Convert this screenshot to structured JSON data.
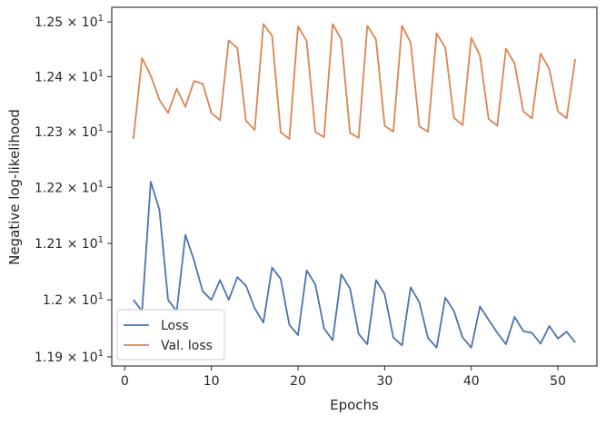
{
  "chart_data": {
    "type": "line",
    "xlabel": "Epochs",
    "ylabel": "Negative log-likelihood",
    "xlim": [
      -1.5,
      54.5
    ],
    "ylim": [
      11.884,
      12.527
    ],
    "x_ticks": [
      0,
      10,
      20,
      30,
      40,
      50
    ],
    "x_tick_labels": [
      "0",
      "10",
      "20",
      "30",
      "40",
      "50"
    ],
    "y_ticks": [
      11.9,
      12.0,
      12.1,
      12.2,
      12.3,
      12.4,
      12.5
    ],
    "y_tick_labels": [
      "1.19",
      "1.2",
      "1.21",
      "1.22",
      "1.23",
      "1.24",
      "1.25"
    ],
    "y_tick_base": "10",
    "y_tick_exponent": "1",
    "y_scale": "log",
    "grid": false,
    "legend_position": "lower-left",
    "series": [
      {
        "name": "Loss",
        "color": "#4c72b0",
        "x": [
          1,
          2,
          3,
          4,
          5,
          6,
          7,
          8,
          9,
          10,
          11,
          12,
          13,
          14,
          15,
          16,
          17,
          18,
          19,
          20,
          21,
          22,
          23,
          24,
          25,
          26,
          27,
          28,
          29,
          30,
          31,
          32,
          33,
          34,
          35,
          36,
          37,
          38,
          39,
          40,
          41,
          42,
          43,
          44,
          45,
          46,
          47,
          48,
          49,
          50,
          51,
          52
        ],
        "y": [
          12.0,
          11.98,
          12.21,
          12.16,
          12.0,
          11.98,
          12.115,
          12.07,
          12.015,
          12.0,
          12.035,
          12.0,
          12.04,
          12.025,
          11.985,
          11.96,
          12.057,
          12.037,
          11.956,
          11.938,
          12.052,
          12.027,
          11.95,
          11.929,
          12.045,
          12.02,
          11.94,
          11.922,
          12.035,
          12.01,
          11.934,
          11.92,
          12.022,
          11.996,
          11.933,
          11.916,
          12.004,
          11.98,
          11.934,
          11.916,
          11.988,
          11.965,
          11.942,
          11.922,
          11.97,
          11.945,
          11.942,
          11.923,
          11.954,
          11.932,
          11.944,
          11.925
        ]
      },
      {
        "name": "Val. loss",
        "color": "#dd8452",
        "x": [
          1,
          2,
          3,
          4,
          5,
          6,
          7,
          8,
          9,
          10,
          11,
          12,
          13,
          14,
          15,
          16,
          17,
          18,
          19,
          20,
          21,
          22,
          23,
          24,
          25,
          26,
          27,
          28,
          29,
          30,
          31,
          32,
          33,
          34,
          35,
          36,
          37,
          38,
          39,
          40,
          41,
          42,
          43,
          44,
          45,
          46,
          47,
          48,
          49,
          50,
          51,
          52
        ],
        "y": [
          12.287,
          12.434,
          12.402,
          12.358,
          12.334,
          12.378,
          12.345,
          12.392,
          12.387,
          12.334,
          12.321,
          12.466,
          12.452,
          12.32,
          12.303,
          12.496,
          12.475,
          12.299,
          12.287,
          12.492,
          12.465,
          12.3,
          12.29,
          12.496,
          12.468,
          12.298,
          12.289,
          12.493,
          12.468,
          12.311,
          12.3,
          12.493,
          12.462,
          12.31,
          12.3,
          12.479,
          12.453,
          12.325,
          12.312,
          12.471,
          12.438,
          12.323,
          12.311,
          12.451,
          12.424,
          12.337,
          12.324,
          12.442,
          12.414,
          12.337,
          12.324,
          12.432
        ]
      }
    ]
  }
}
